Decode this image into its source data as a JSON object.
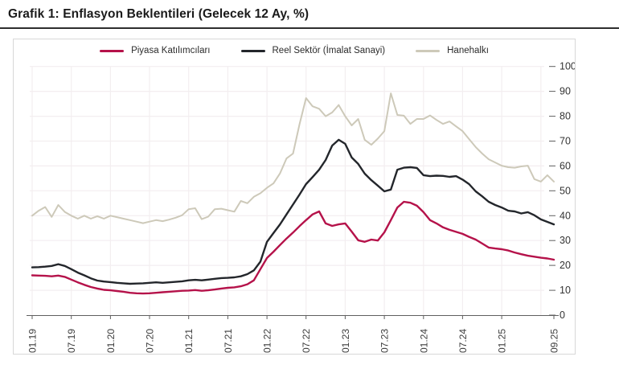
{
  "page": {
    "title": "Grafik 1: Enflasyon Beklentileri (Gelecek 12 Ay, %)"
  },
  "colors": {
    "title_text": "#1a1a1a",
    "title_rule": "#2e2e2e",
    "card_border": "#d8d8d8",
    "grid": "#f3eef0",
    "axis": "#5f5f5f",
    "tick_label": "#3c3c3c",
    "series_piyasa": "#b5124a",
    "series_reel": "#23262b",
    "series_hanehalki": "#cdc9b9"
  },
  "chart_data": {
    "type": "line",
    "title": "Enflasyon Beklentileri (Gelecek 12 Ay, %)",
    "x_unit": "month",
    "x_start": "01.19",
    "x_end": "09.25",
    "x_tick_labels": [
      "01.19",
      "07.19",
      "01.20",
      "07.20",
      "01.21",
      "07.21",
      "01.22",
      "07.22",
      "01.23",
      "07.23",
      "01.24",
      "07.24",
      "01.25",
      "09.25"
    ],
    "x_tick_month_index": [
      0,
      6,
      12,
      18,
      24,
      30,
      36,
      42,
      48,
      54,
      60,
      66,
      72,
      80
    ],
    "y_ticks": [
      0,
      10,
      20,
      30,
      40,
      50,
      60,
      70,
      80,
      90,
      100
    ],
    "ylim": [
      0,
      100
    ],
    "grid": true,
    "legend_position": "top",
    "y_axis_side": "right",
    "series": [
      {
        "name": "Piyasa Katılımcıları",
        "color": "#b5124a",
        "values": [
          16.0,
          15.9,
          15.8,
          15.6,
          15.9,
          15.4,
          14.3,
          13.2,
          12.2,
          11.3,
          10.7,
          10.2,
          10.0,
          9.7,
          9.4,
          9.0,
          8.8,
          8.7,
          8.8,
          9.0,
          9.2,
          9.4,
          9.6,
          9.8,
          9.9,
          10.1,
          9.8,
          10.0,
          10.3,
          10.7,
          11.0,
          11.2,
          11.6,
          12.4,
          14.0,
          18.5,
          23.0,
          25.5,
          28.2,
          30.8,
          33.2,
          35.8,
          38.2,
          40.5,
          41.7,
          36.9,
          35.9,
          36.5,
          36.9,
          33.6,
          30.1,
          29.5,
          30.4,
          30.0,
          33.3,
          38.2,
          43.3,
          45.6,
          45.2,
          44.0,
          41.4,
          38.2,
          36.9,
          35.3,
          34.3,
          33.5,
          32.7,
          31.5,
          30.4,
          28.8,
          27.2,
          26.8,
          26.5,
          26.0,
          25.2,
          24.5,
          23.9,
          23.5,
          23.1,
          22.8,
          22.3
        ]
      },
      {
        "name": "Reel Sektör (İmalat Sanayi)",
        "color": "#23262b",
        "values": [
          19.2,
          19.3,
          19.5,
          19.8,
          20.5,
          19.8,
          18.5,
          17.1,
          16.0,
          14.8,
          13.9,
          13.5,
          13.3,
          13.0,
          12.8,
          12.6,
          12.7,
          12.8,
          13.0,
          13.2,
          13.0,
          13.2,
          13.4,
          13.6,
          14.0,
          14.2,
          14.0,
          14.3,
          14.6,
          14.9,
          15.0,
          15.2,
          15.6,
          16.5,
          18.0,
          21.5,
          29.5,
          33.0,
          36.5,
          40.5,
          44.5,
          48.5,
          52.7,
          55.5,
          58.5,
          62.4,
          68.2,
          70.5,
          68.9,
          63.4,
          60.8,
          56.9,
          54.3,
          52.1,
          49.8,
          50.5,
          58.5,
          59.3,
          59.5,
          59.2,
          56.3,
          55.9,
          56.1,
          56.0,
          55.6,
          55.9,
          54.5,
          52.7,
          49.8,
          47.8,
          45.6,
          44.3,
          43.3,
          42.0,
          41.7,
          40.9,
          41.4,
          40.2,
          38.5,
          37.5,
          36.5
        ]
      },
      {
        "name": "Hanehalkı",
        "color": "#cdc9b9",
        "values": [
          40.0,
          42.0,
          43.5,
          39.5,
          44.3,
          41.5,
          40.0,
          38.8,
          40.0,
          38.8,
          39.8,
          38.8,
          40.0,
          39.4,
          38.8,
          38.2,
          37.6,
          37.0,
          37.6,
          38.2,
          37.8,
          38.4,
          39.2,
          40.2,
          42.6,
          43.0,
          38.6,
          39.6,
          42.6,
          42.8,
          42.2,
          41.6,
          45.9,
          45.0,
          47.6,
          49.0,
          51.2,
          53.0,
          57.0,
          63.0,
          65.0,
          76.8,
          87.3,
          84.0,
          83.0,
          80.0,
          81.5,
          84.5,
          80.0,
          76.3,
          78.9,
          70.5,
          68.5,
          71.0,
          74.0,
          89.2,
          80.5,
          80.2,
          76.9,
          78.9,
          78.9,
          80.3,
          78.5,
          76.9,
          77.9,
          75.9,
          74.0,
          70.8,
          67.6,
          65.0,
          62.7,
          61.4,
          60.1,
          59.5,
          59.3,
          59.8,
          60.1,
          54.7,
          53.7,
          56.3,
          53.7
        ]
      }
    ]
  }
}
